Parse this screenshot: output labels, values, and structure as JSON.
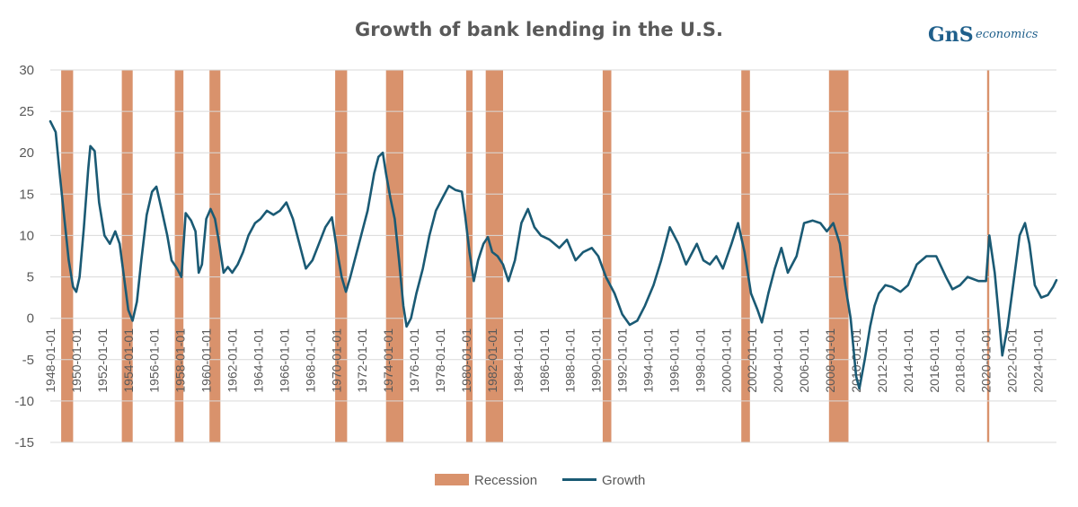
{
  "colors": {
    "recession": "#D9926C",
    "growth": "#1A5A74",
    "logo": "#1F5F8B",
    "grid": "#D9D9D9",
    "text": "#595959"
  },
  "logo": {
    "mark": "GnS",
    "text": "economics"
  },
  "chart_data": {
    "type": "line",
    "title": "Growth of bank lending in the U.S.",
    "xlabel": "",
    "ylabel": "",
    "ylim": [
      -15,
      30
    ],
    "yticks": [
      -15,
      -10,
      -5,
      0,
      5,
      10,
      15,
      20,
      25,
      30
    ],
    "xlim": [
      "1948-01-01",
      "2025-06-01"
    ],
    "xticks": [
      "1948-01-01",
      "1950-01-01",
      "1952-01-01",
      "1954-01-01",
      "1956-01-01",
      "1958-01-01",
      "1960-01-01",
      "1962-01-01",
      "1964-01-01",
      "1966-01-01",
      "1968-01-01",
      "1970-01-01",
      "1972-01-01",
      "1974-01-01",
      "1976-01-01",
      "1978-01-01",
      "1980-01-01",
      "1982-01-01",
      "1984-01-01",
      "1986-01-01",
      "1988-01-01",
      "1990-01-01",
      "1992-01-01",
      "1994-01-01",
      "1996-01-01",
      "1998-01-01",
      "2000-01-01",
      "2002-01-01",
      "2004-01-01",
      "2006-01-01",
      "2008-01-01",
      "2010-01-01",
      "2012-01-01",
      "2014-01-01",
      "2016-01-01",
      "2018-01-01",
      "2020-01-01",
      "2022-01-01",
      "2024-01-01"
    ],
    "grid": true,
    "legend": "bottom",
    "series": [
      {
        "name": "Recession",
        "type": "bar",
        "periods": [
          [
            "1948-11-01",
            "1949-10-01"
          ],
          [
            "1953-07-01",
            "1954-05-01"
          ],
          [
            "1957-08-01",
            "1958-04-01"
          ],
          [
            "1960-04-01",
            "1961-02-01"
          ],
          [
            "1969-12-01",
            "1970-11-01"
          ],
          [
            "1973-11-01",
            "1975-03-01"
          ],
          [
            "1980-01-01",
            "1980-07-01"
          ],
          [
            "1981-07-01",
            "1982-11-01"
          ],
          [
            "1990-07-01",
            "1991-03-01"
          ],
          [
            "2001-03-01",
            "2001-11-01"
          ],
          [
            "2007-12-01",
            "2009-06-01"
          ],
          [
            "2020-02-01",
            "2020-04-01"
          ]
        ]
      },
      {
        "name": "Growth",
        "type": "line",
        "points": [
          [
            "1948-01-01",
            23.8
          ],
          [
            "1948-06-01",
            22.5
          ],
          [
            "1948-10-01",
            17
          ],
          [
            "1949-02-01",
            12
          ],
          [
            "1949-06-01",
            7
          ],
          [
            "1949-10-01",
            3.8
          ],
          [
            "1950-01-01",
            3.2
          ],
          [
            "1950-04-01",
            5
          ],
          [
            "1950-08-01",
            11
          ],
          [
            "1950-12-01",
            18
          ],
          [
            "1951-02-01",
            20.8
          ],
          [
            "1951-06-01",
            20.2
          ],
          [
            "1951-10-01",
            14
          ],
          [
            "1952-03-01",
            10
          ],
          [
            "1952-08-01",
            9
          ],
          [
            "1953-01-01",
            10.5
          ],
          [
            "1953-05-01",
            9
          ],
          [
            "1953-09-01",
            5
          ],
          [
            "1954-01-01",
            1
          ],
          [
            "1954-05-01",
            -0.3
          ],
          [
            "1954-09-01",
            2
          ],
          [
            "1955-01-01",
            7
          ],
          [
            "1955-06-01",
            12.5
          ],
          [
            "1955-11-01",
            15.3
          ],
          [
            "1956-03-01",
            15.9
          ],
          [
            "1956-08-01",
            13
          ],
          [
            "1957-01-01",
            10
          ],
          [
            "1957-05-01",
            7
          ],
          [
            "1957-10-01",
            6
          ],
          [
            "1958-02-01",
            5
          ],
          [
            "1958-06-01",
            12.7
          ],
          [
            "1958-11-01",
            11.8
          ],
          [
            "1959-03-01",
            10.5
          ],
          [
            "1959-06-01",
            5.5
          ],
          [
            "1959-09-01",
            6.5
          ],
          [
            "1960-01-01",
            12
          ],
          [
            "1960-05-01",
            13.2
          ],
          [
            "1960-09-01",
            12
          ],
          [
            "1961-01-01",
            9
          ],
          [
            "1961-05-01",
            5.5
          ],
          [
            "1961-09-01",
            6.2
          ],
          [
            "1962-01-01",
            5.5
          ],
          [
            "1962-06-01",
            6.5
          ],
          [
            "1962-11-01",
            8
          ],
          [
            "1963-04-01",
            10
          ],
          [
            "1963-10-01",
            11.5
          ],
          [
            "1964-03-01",
            12
          ],
          [
            "1964-09-01",
            13
          ],
          [
            "1965-03-01",
            12.5
          ],
          [
            "1965-09-01",
            13
          ],
          [
            "1966-03-01",
            14
          ],
          [
            "1966-09-01",
            12
          ],
          [
            "1967-03-01",
            9
          ],
          [
            "1967-09-01",
            6
          ],
          [
            "1968-03-01",
            7
          ],
          [
            "1968-09-01",
            9
          ],
          [
            "1969-03-01",
            11
          ],
          [
            "1969-09-01",
            12.2
          ],
          [
            "1970-02-01",
            8
          ],
          [
            "1970-06-01",
            5
          ],
          [
            "1970-10-01",
            3.2
          ],
          [
            "1971-02-01",
            5
          ],
          [
            "1971-06-01",
            7
          ],
          [
            "1971-12-01",
            10
          ],
          [
            "1972-06-01",
            13
          ],
          [
            "1972-12-01",
            17.5
          ],
          [
            "1973-04-01",
            19.5
          ],
          [
            "1973-08-01",
            20
          ],
          [
            "1973-11-01",
            17.5
          ],
          [
            "1974-03-01",
            14.5
          ],
          [
            "1974-07-01",
            12
          ],
          [
            "1974-11-01",
            7
          ],
          [
            "1975-03-01",
            1.5
          ],
          [
            "1975-06-01",
            -1
          ],
          [
            "1975-10-01",
            0
          ],
          [
            "1976-03-01",
            3
          ],
          [
            "1976-09-01",
            6
          ],
          [
            "1977-03-01",
            10
          ],
          [
            "1977-09-01",
            13
          ],
          [
            "1978-03-01",
            14.5
          ],
          [
            "1978-09-01",
            16
          ],
          [
            "1979-03-01",
            15.5
          ],
          [
            "1979-09-01",
            15.3
          ],
          [
            "1979-12-01",
            12.5
          ],
          [
            "1980-04-01",
            8
          ],
          [
            "1980-08-01",
            4.5
          ],
          [
            "1980-12-01",
            7
          ],
          [
            "1981-05-01",
            9
          ],
          [
            "1981-09-01",
            9.8
          ],
          [
            "1982-01-01",
            8
          ],
          [
            "1982-06-01",
            7.5
          ],
          [
            "1982-11-01",
            6.5
          ],
          [
            "1983-04-01",
            4.5
          ],
          [
            "1983-10-01",
            7
          ],
          [
            "1984-04-01",
            11.5
          ],
          [
            "1984-10-01",
            13.2
          ],
          [
            "1985-04-01",
            11
          ],
          [
            "1985-10-01",
            10
          ],
          [
            "1986-06-01",
            9.5
          ],
          [
            "1987-03-01",
            8.5
          ],
          [
            "1987-10-01",
            9.5
          ],
          [
            "1988-06-01",
            7
          ],
          [
            "1989-01-01",
            8
          ],
          [
            "1989-09-01",
            8.5
          ],
          [
            "1990-03-01",
            7.5
          ],
          [
            "1990-10-01",
            5
          ],
          [
            "1991-06-01",
            3
          ],
          [
            "1992-01-01",
            0.5
          ],
          [
            "1992-08-01",
            -0.8
          ],
          [
            "1993-03-01",
            -0.3
          ],
          [
            "1993-10-01",
            1.5
          ],
          [
            "1994-06-01",
            4
          ],
          [
            "1995-01-01",
            7
          ],
          [
            "1995-09-01",
            11
          ],
          [
            "1996-05-01",
            9
          ],
          [
            "1996-12-01",
            6.5
          ],
          [
            "1997-06-01",
            8
          ],
          [
            "1997-10-01",
            9
          ],
          [
            "1998-04-01",
            7
          ],
          [
            "1998-10-01",
            6.5
          ],
          [
            "1999-04-01",
            7.5
          ],
          [
            "1999-10-01",
            6
          ],
          [
            "2000-06-01",
            9
          ],
          [
            "2000-12-01",
            11.5
          ],
          [
            "2001-06-01",
            8
          ],
          [
            "2001-12-01",
            3
          ],
          [
            "2002-06-01",
            1
          ],
          [
            "2002-10-01",
            -0.5
          ],
          [
            "2003-04-01",
            3
          ],
          [
            "2003-10-01",
            6
          ],
          [
            "2004-04-01",
            8.5
          ],
          [
            "2004-10-01",
            5.5
          ],
          [
            "2005-06-01",
            7.5
          ],
          [
            "2006-01-01",
            11.5
          ],
          [
            "2006-09-01",
            11.8
          ],
          [
            "2007-04-01",
            11.5
          ],
          [
            "2007-10-01",
            10.5
          ],
          [
            "2008-04-01",
            11.5
          ],
          [
            "2008-10-01",
            9
          ],
          [
            "2009-03-01",
            4
          ],
          [
            "2009-08-01",
            0
          ],
          [
            "2010-01-01",
            -7
          ],
          [
            "2010-04-01",
            -8.5
          ],
          [
            "2010-09-01",
            -5
          ],
          [
            "2011-02-01",
            -1
          ],
          [
            "2011-06-01",
            1.5
          ],
          [
            "2011-10-01",
            3
          ],
          [
            "2012-04-01",
            4
          ],
          [
            "2012-10-01",
            3.8
          ],
          [
            "2013-06-01",
            3.2
          ],
          [
            "2014-01-01",
            4
          ],
          [
            "2014-09-01",
            6.5
          ],
          [
            "2015-06-01",
            7.5
          ],
          [
            "2016-03-01",
            7.5
          ],
          [
            "2016-12-01",
            5
          ],
          [
            "2017-06-01",
            3.5
          ],
          [
            "2018-01-01",
            4
          ],
          [
            "2018-08-01",
            5
          ],
          [
            "2019-06-01",
            4.5
          ],
          [
            "2020-01-01",
            4.5
          ],
          [
            "2020-04-01",
            10
          ],
          [
            "2020-09-01",
            5.5
          ],
          [
            "2021-01-01",
            0
          ],
          [
            "2021-04-01",
            -4.5
          ],
          [
            "2021-09-01",
            -1
          ],
          [
            "2022-03-01",
            5
          ],
          [
            "2022-08-01",
            10
          ],
          [
            "2023-01-01",
            11.5
          ],
          [
            "2023-05-01",
            9
          ],
          [
            "2023-10-01",
            4
          ],
          [
            "2024-04-01",
            2.5
          ],
          [
            "2024-10-01",
            2.8
          ],
          [
            "2025-03-01",
            3.8
          ],
          [
            "2025-06-01",
            4.6
          ]
        ]
      }
    ]
  }
}
